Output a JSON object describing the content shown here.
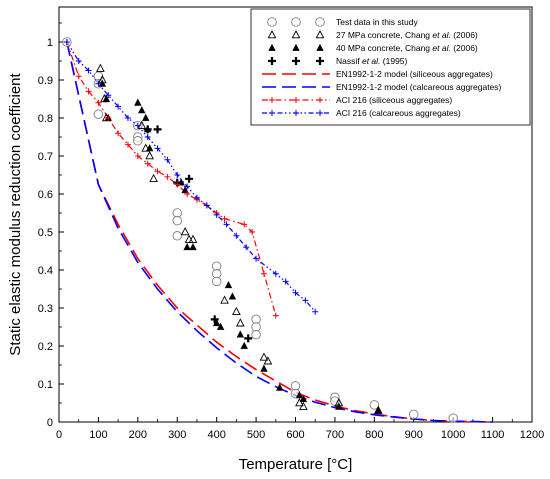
{
  "chart_data": {
    "type": "scatter",
    "xlabel": "Temperature [°C]",
    "ylabel": "Static elastic modulus reduction coefficient",
    "xlim": [
      0,
      1200
    ],
    "ylim": [
      0,
      1.05
    ],
    "xticks": [
      0,
      100,
      200,
      300,
      400,
      500,
      600,
      700,
      800,
      900,
      1000,
      1100,
      1200
    ],
    "yticks": [
      0,
      0.1,
      0.2,
      0.3,
      0.4,
      0.5,
      0.6,
      0.7,
      0.8,
      0.9,
      1
    ],
    "xtick_labels": [
      "0",
      "100",
      "200",
      "300",
      "400",
      "500",
      "600",
      "700",
      "800",
      "900",
      "1000",
      "1100",
      "1200"
    ],
    "ytick_labels": [
      "0",
      "0.1",
      "0.2",
      "0.3",
      "0.4",
      "0.5",
      "0.6",
      "0.7",
      "0.8",
      "0.9",
      "1"
    ],
    "grid": false,
    "legend_position": "top-right",
    "series": [
      {
        "name": "Test data in this study",
        "marker": "circle-open",
        "color": "#808080",
        "points": [
          [
            20,
            1.0
          ],
          [
            100,
            0.91
          ],
          [
            100,
            0.89
          ],
          [
            100,
            0.81
          ],
          [
            200,
            0.78
          ],
          [
            200,
            0.75
          ],
          [
            200,
            0.74
          ],
          [
            300,
            0.55
          ],
          [
            300,
            0.53
          ],
          [
            300,
            0.49
          ],
          [
            400,
            0.41
          ],
          [
            400,
            0.39
          ],
          [
            400,
            0.37
          ],
          [
            500,
            0.27
          ],
          [
            500,
            0.25
          ],
          [
            500,
            0.23
          ],
          [
            600,
            0.095
          ],
          [
            600,
            0.075
          ],
          [
            700,
            0.065
          ],
          [
            700,
            0.055
          ],
          [
            800,
            0.045
          ],
          [
            900,
            0.02
          ],
          [
            1000,
            0.01
          ]
        ]
      },
      {
        "name": "27 MPa concrete, Chang et al. (2006)",
        "marker": "triangle-open",
        "color": "#000000",
        "points": [
          [
            105,
            0.93
          ],
          [
            110,
            0.9
          ],
          [
            115,
            0.85
          ],
          [
            120,
            0.8
          ],
          [
            210,
            0.78
          ],
          [
            220,
            0.72
          ],
          [
            230,
            0.7
          ],
          [
            240,
            0.64
          ],
          [
            320,
            0.5
          ],
          [
            330,
            0.48
          ],
          [
            340,
            0.48
          ],
          [
            420,
            0.32
          ],
          [
            450,
            0.29
          ],
          [
            460,
            0.26
          ],
          [
            520,
            0.17
          ],
          [
            530,
            0.16
          ],
          [
            610,
            0.05
          ],
          [
            620,
            0.04
          ],
          [
            710,
            0.05
          ],
          [
            810,
            0.03
          ]
        ]
      },
      {
        "name": "40 MPa concrete, Chang et al. (2006)",
        "marker": "triangle-filled",
        "color": "#000000",
        "points": [
          [
            110,
            0.89
          ],
          [
            120,
            0.85
          ],
          [
            125,
            0.8
          ],
          [
            200,
            0.84
          ],
          [
            210,
            0.82
          ],
          [
            220,
            0.8
          ],
          [
            225,
            0.77
          ],
          [
            230,
            0.72
          ],
          [
            310,
            0.63
          ],
          [
            320,
            0.61
          ],
          [
            325,
            0.46
          ],
          [
            340,
            0.46
          ],
          [
            400,
            0.26
          ],
          [
            410,
            0.25
          ],
          [
            430,
            0.36
          ],
          [
            440,
            0.33
          ],
          [
            460,
            0.23
          ],
          [
            470,
            0.2
          ],
          [
            520,
            0.14
          ],
          [
            560,
            0.09
          ],
          [
            610,
            0.07
          ],
          [
            620,
            0.06
          ],
          [
            710,
            0.04
          ],
          [
            810,
            0.03
          ]
        ]
      },
      {
        "name": "Nassif et al. (1995)",
        "marker": "plus-bold",
        "color": "#000000",
        "points": [
          [
            225,
            0.77
          ],
          [
            250,
            0.77
          ],
          [
            300,
            0.63
          ],
          [
            330,
            0.64
          ],
          [
            395,
            0.27
          ],
          [
            480,
            0.22
          ]
        ]
      },
      {
        "name": "EN1992-1-2 model (siliceous aggregates)",
        "style": "long-dash",
        "color": "#ff0000",
        "points": [
          [
            20,
            1.0
          ],
          [
            100,
            0.625
          ],
          [
            150,
            0.52
          ],
          [
            200,
            0.43
          ],
          [
            250,
            0.36
          ],
          [
            300,
            0.3
          ],
          [
            350,
            0.255
          ],
          [
            400,
            0.21
          ],
          [
            450,
            0.172
          ],
          [
            500,
            0.138
          ],
          [
            550,
            0.108
          ],
          [
            600,
            0.078
          ],
          [
            650,
            0.058
          ],
          [
            700,
            0.042
          ],
          [
            750,
            0.03
          ],
          [
            800,
            0.021
          ],
          [
            850,
            0.014
          ],
          [
            900,
            0.008
          ],
          [
            950,
            0.004
          ],
          [
            1000,
            0.002
          ],
          [
            1100,
            0.0
          ]
        ]
      },
      {
        "name": "EN1992-1-2 model (calcareous aggregates)",
        "style": "long-dash",
        "color": "#0000ff",
        "points": [
          [
            20,
            1.0
          ],
          [
            100,
            0.625
          ],
          [
            150,
            0.51
          ],
          [
            200,
            0.42
          ],
          [
            250,
            0.35
          ],
          [
            300,
            0.29
          ],
          [
            350,
            0.24
          ],
          [
            400,
            0.195
          ],
          [
            450,
            0.155
          ],
          [
            500,
            0.12
          ],
          [
            550,
            0.093
          ],
          [
            600,
            0.07
          ],
          [
            650,
            0.052
          ],
          [
            700,
            0.038
          ],
          [
            750,
            0.027
          ],
          [
            800,
            0.019
          ],
          [
            850,
            0.013
          ],
          [
            900,
            0.008
          ],
          [
            950,
            0.004
          ],
          [
            1000,
            0.002
          ],
          [
            1100,
            0.0
          ]
        ]
      },
      {
        "name": "ACI 216 (siliceous aggregates)",
        "style": "dash-dot",
        "marker": "plus",
        "color": "#ff0000",
        "points": [
          [
            20,
            1.0
          ],
          [
            50,
            0.91
          ],
          [
            75,
            0.87
          ],
          [
            100,
            0.84
          ],
          [
            125,
            0.8
          ],
          [
            150,
            0.76
          ],
          [
            175,
            0.73
          ],
          [
            200,
            0.7
          ],
          [
            225,
            0.68
          ],
          [
            250,
            0.66
          ],
          [
            275,
            0.645
          ],
          [
            300,
            0.625
          ],
          [
            325,
            0.6
          ],
          [
            350,
            0.585
          ],
          [
            375,
            0.57
          ],
          [
            400,
            0.55
          ],
          [
            420,
            0.535
          ],
          [
            470,
            0.52
          ],
          [
            490,
            0.5
          ],
          [
            520,
            0.39
          ],
          [
            550,
            0.28
          ]
        ]
      },
      {
        "name": "ACI 216 (calcareous aggregates)",
        "style": "dash-dot-dot",
        "marker": "plus",
        "color": "#0000ff",
        "points": [
          [
            20,
            1.0
          ],
          [
            50,
            0.95
          ],
          [
            75,
            0.925
          ],
          [
            100,
            0.89
          ],
          [
            125,
            0.86
          ],
          [
            150,
            0.83
          ],
          [
            175,
            0.8
          ],
          [
            200,
            0.78
          ],
          [
            225,
            0.75
          ],
          [
            250,
            0.72
          ],
          [
            275,
            0.69
          ],
          [
            300,
            0.65
          ],
          [
            325,
            0.62
          ],
          [
            350,
            0.59
          ],
          [
            375,
            0.57
          ],
          [
            400,
            0.545
          ],
          [
            425,
            0.52
          ],
          [
            450,
            0.49
          ],
          [
            475,
            0.46
          ],
          [
            500,
            0.43
          ],
          [
            550,
            0.39
          ],
          [
            575,
            0.37
          ],
          [
            600,
            0.34
          ],
          [
            625,
            0.32
          ],
          [
            650,
            0.29
          ]
        ]
      }
    ]
  },
  "legend": {
    "entries": [
      {
        "label": "Test data in this study",
        "plain": "Test data in this study",
        "italic": "",
        "tail": ""
      },
      {
        "label": "27 MPa concrete, Chang et al. (2006)",
        "plain": "27 MPa concrete, Chang ",
        "italic": "et al.",
        "tail": " (2006)"
      },
      {
        "label": "40 MPa concrete, Chang et al. (2006)",
        "plain": "40 MPa concrete, Chang ",
        "italic": "et al.",
        "tail": " (2006)"
      },
      {
        "label": "Nassif et al. (1995)",
        "plain": "Nassif ",
        "italic": "et al.",
        "tail": " (1995)"
      },
      {
        "label": "EN1992-1-2 model (siliceous aggregates)",
        "plain": "EN1992-1-2 model (siliceous aggregates)",
        "italic": "",
        "tail": ""
      },
      {
        "label": "EN1992-1-2 model (calcareous aggregates)",
        "plain": "EN1992-1-2 model (calcareous aggregates)",
        "italic": "",
        "tail": ""
      },
      {
        "label": "ACI 216 (siliceous aggregates)",
        "plain": "ACI 216 (siliceous aggregates)",
        "italic": "",
        "tail": ""
      },
      {
        "label": "ACI 216 (calcareous aggregates)",
        "plain": "ACI 216 (calcareous aggregates)",
        "italic": "",
        "tail": ""
      }
    ]
  }
}
